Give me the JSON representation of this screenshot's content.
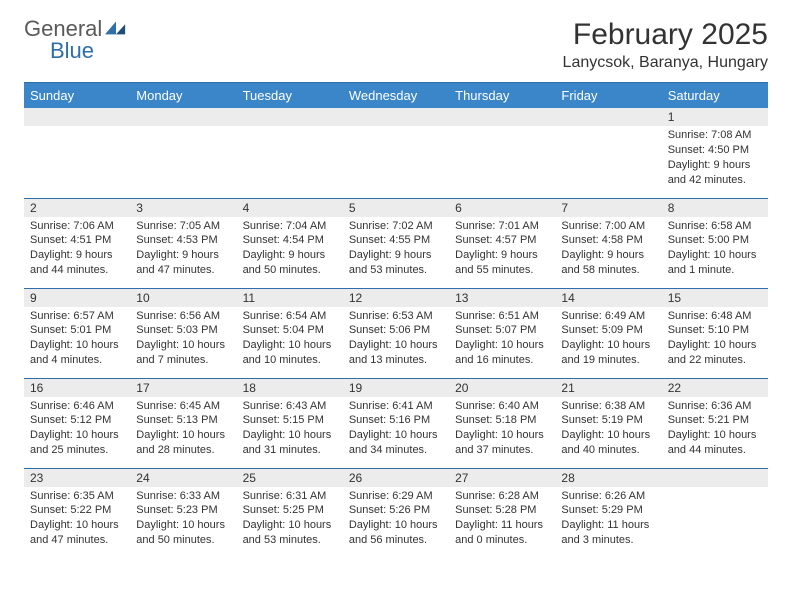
{
  "logo": {
    "word1": "General",
    "word2": "Blue"
  },
  "title": "February 2025",
  "location": "Lanycsok, Baranya, Hungary",
  "colors": {
    "header_bg": "#3a86c8",
    "header_text": "#ffffff",
    "rule": "#2f6fa8",
    "daynum_bg": "#ececec",
    "body_text": "#333333",
    "logo_gray": "#5a5a5a",
    "logo_blue": "#2f6fa8",
    "page_bg": "#ffffff"
  },
  "weekdays": [
    "Sunday",
    "Monday",
    "Tuesday",
    "Wednesday",
    "Thursday",
    "Friday",
    "Saturday"
  ],
  "weeks": [
    [
      {
        "n": "",
        "sr": "",
        "ss": "",
        "dl": ""
      },
      {
        "n": "",
        "sr": "",
        "ss": "",
        "dl": ""
      },
      {
        "n": "",
        "sr": "",
        "ss": "",
        "dl": ""
      },
      {
        "n": "",
        "sr": "",
        "ss": "",
        "dl": ""
      },
      {
        "n": "",
        "sr": "",
        "ss": "",
        "dl": ""
      },
      {
        "n": "",
        "sr": "",
        "ss": "",
        "dl": ""
      },
      {
        "n": "1",
        "sr": "Sunrise: 7:08 AM",
        "ss": "Sunset: 4:50 PM",
        "dl": "Daylight: 9 hours and 42 minutes."
      }
    ],
    [
      {
        "n": "2",
        "sr": "Sunrise: 7:06 AM",
        "ss": "Sunset: 4:51 PM",
        "dl": "Daylight: 9 hours and 44 minutes."
      },
      {
        "n": "3",
        "sr": "Sunrise: 7:05 AM",
        "ss": "Sunset: 4:53 PM",
        "dl": "Daylight: 9 hours and 47 minutes."
      },
      {
        "n": "4",
        "sr": "Sunrise: 7:04 AM",
        "ss": "Sunset: 4:54 PM",
        "dl": "Daylight: 9 hours and 50 minutes."
      },
      {
        "n": "5",
        "sr": "Sunrise: 7:02 AM",
        "ss": "Sunset: 4:55 PM",
        "dl": "Daylight: 9 hours and 53 minutes."
      },
      {
        "n": "6",
        "sr": "Sunrise: 7:01 AM",
        "ss": "Sunset: 4:57 PM",
        "dl": "Daylight: 9 hours and 55 minutes."
      },
      {
        "n": "7",
        "sr": "Sunrise: 7:00 AM",
        "ss": "Sunset: 4:58 PM",
        "dl": "Daylight: 9 hours and 58 minutes."
      },
      {
        "n": "8",
        "sr": "Sunrise: 6:58 AM",
        "ss": "Sunset: 5:00 PM",
        "dl": "Daylight: 10 hours and 1 minute."
      }
    ],
    [
      {
        "n": "9",
        "sr": "Sunrise: 6:57 AM",
        "ss": "Sunset: 5:01 PM",
        "dl": "Daylight: 10 hours and 4 minutes."
      },
      {
        "n": "10",
        "sr": "Sunrise: 6:56 AM",
        "ss": "Sunset: 5:03 PM",
        "dl": "Daylight: 10 hours and 7 minutes."
      },
      {
        "n": "11",
        "sr": "Sunrise: 6:54 AM",
        "ss": "Sunset: 5:04 PM",
        "dl": "Daylight: 10 hours and 10 minutes."
      },
      {
        "n": "12",
        "sr": "Sunrise: 6:53 AM",
        "ss": "Sunset: 5:06 PM",
        "dl": "Daylight: 10 hours and 13 minutes."
      },
      {
        "n": "13",
        "sr": "Sunrise: 6:51 AM",
        "ss": "Sunset: 5:07 PM",
        "dl": "Daylight: 10 hours and 16 minutes."
      },
      {
        "n": "14",
        "sr": "Sunrise: 6:49 AM",
        "ss": "Sunset: 5:09 PM",
        "dl": "Daylight: 10 hours and 19 minutes."
      },
      {
        "n": "15",
        "sr": "Sunrise: 6:48 AM",
        "ss": "Sunset: 5:10 PM",
        "dl": "Daylight: 10 hours and 22 minutes."
      }
    ],
    [
      {
        "n": "16",
        "sr": "Sunrise: 6:46 AM",
        "ss": "Sunset: 5:12 PM",
        "dl": "Daylight: 10 hours and 25 minutes."
      },
      {
        "n": "17",
        "sr": "Sunrise: 6:45 AM",
        "ss": "Sunset: 5:13 PM",
        "dl": "Daylight: 10 hours and 28 minutes."
      },
      {
        "n": "18",
        "sr": "Sunrise: 6:43 AM",
        "ss": "Sunset: 5:15 PM",
        "dl": "Daylight: 10 hours and 31 minutes."
      },
      {
        "n": "19",
        "sr": "Sunrise: 6:41 AM",
        "ss": "Sunset: 5:16 PM",
        "dl": "Daylight: 10 hours and 34 minutes."
      },
      {
        "n": "20",
        "sr": "Sunrise: 6:40 AM",
        "ss": "Sunset: 5:18 PM",
        "dl": "Daylight: 10 hours and 37 minutes."
      },
      {
        "n": "21",
        "sr": "Sunrise: 6:38 AM",
        "ss": "Sunset: 5:19 PM",
        "dl": "Daylight: 10 hours and 40 minutes."
      },
      {
        "n": "22",
        "sr": "Sunrise: 6:36 AM",
        "ss": "Sunset: 5:21 PM",
        "dl": "Daylight: 10 hours and 44 minutes."
      }
    ],
    [
      {
        "n": "23",
        "sr": "Sunrise: 6:35 AM",
        "ss": "Sunset: 5:22 PM",
        "dl": "Daylight: 10 hours and 47 minutes."
      },
      {
        "n": "24",
        "sr": "Sunrise: 6:33 AM",
        "ss": "Sunset: 5:23 PM",
        "dl": "Daylight: 10 hours and 50 minutes."
      },
      {
        "n": "25",
        "sr": "Sunrise: 6:31 AM",
        "ss": "Sunset: 5:25 PM",
        "dl": "Daylight: 10 hours and 53 minutes."
      },
      {
        "n": "26",
        "sr": "Sunrise: 6:29 AM",
        "ss": "Sunset: 5:26 PM",
        "dl": "Daylight: 10 hours and 56 minutes."
      },
      {
        "n": "27",
        "sr": "Sunrise: 6:28 AM",
        "ss": "Sunset: 5:28 PM",
        "dl": "Daylight: 11 hours and 0 minutes."
      },
      {
        "n": "28",
        "sr": "Sunrise: 6:26 AM",
        "ss": "Sunset: 5:29 PM",
        "dl": "Daylight: 11 hours and 3 minutes."
      },
      {
        "n": "",
        "sr": "",
        "ss": "",
        "dl": ""
      }
    ]
  ]
}
